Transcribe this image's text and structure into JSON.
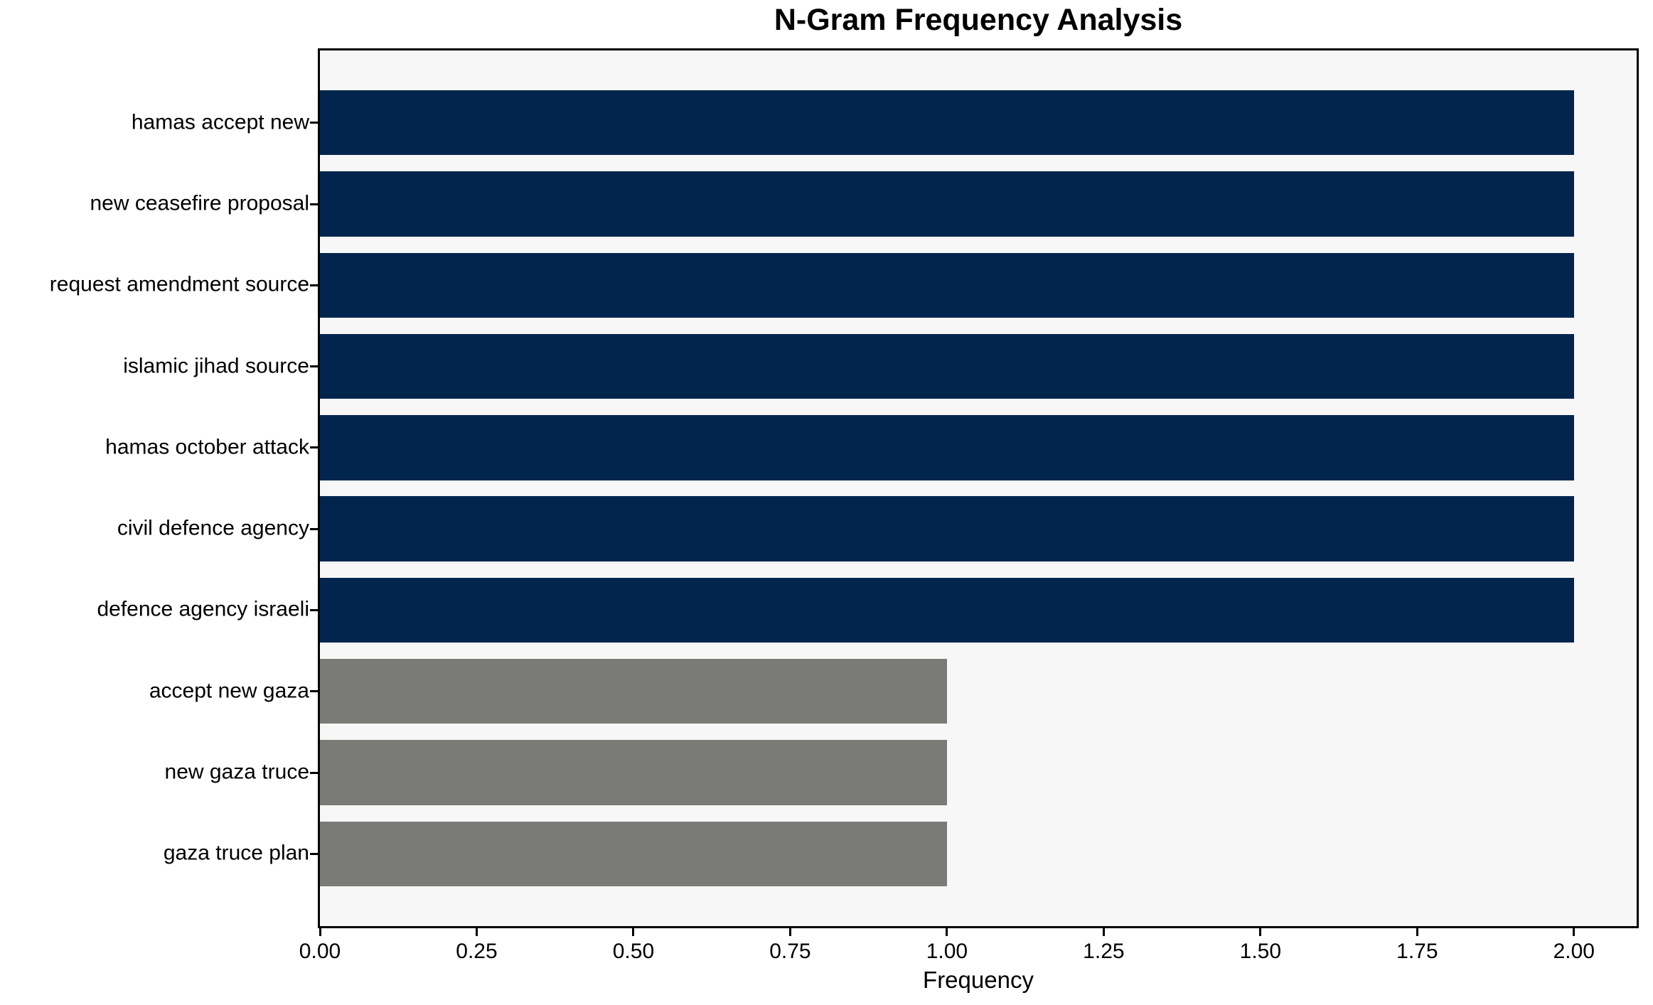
{
  "chart_data": {
    "type": "bar",
    "orientation": "horizontal",
    "title": "N-Gram Frequency Analysis",
    "xlabel": "Frequency",
    "ylabel": "",
    "categories": [
      "hamas accept new",
      "new ceasefire proposal",
      "request amendment source",
      "islamic jihad source",
      "hamas october attack",
      "civil defence agency",
      "defence agency israeli",
      "accept new gaza",
      "new gaza truce",
      "gaza truce plan"
    ],
    "values": [
      2,
      2,
      2,
      2,
      2,
      2,
      2,
      1,
      1,
      1
    ],
    "bar_colors": [
      "#02254e",
      "#02254e",
      "#02254e",
      "#02254e",
      "#02254e",
      "#02254e",
      "#02254e",
      "#7a7a77",
      "#7a7a77",
      "#7a7a77"
    ],
    "xlim": [
      0,
      2.1
    ],
    "x_ticks": [
      0.0,
      0.25,
      0.5,
      0.75,
      1.0,
      1.25,
      1.5,
      1.75,
      2.0
    ],
    "x_tick_labels": [
      "0.00",
      "0.25",
      "0.50",
      "0.75",
      "1.00",
      "1.25",
      "1.50",
      "1.75",
      "2.00"
    ],
    "grid": false,
    "legend": "none",
    "plot_background": "#f7f7f7",
    "figure_background": "#ffffff",
    "colors": {
      "high_freq": "#02254e",
      "low_freq": "#7a7a77"
    }
  }
}
